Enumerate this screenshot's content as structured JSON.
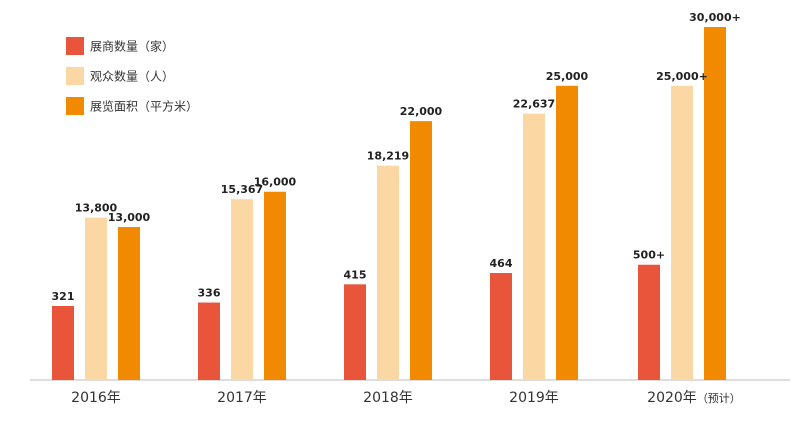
{
  "chart_data": {
    "type": "bar",
    "title": "",
    "xlabel": "",
    "ylabel": "",
    "legend_position": "top-left",
    "grid": false,
    "categories": [
      {
        "label": "2016年",
        "note": ""
      },
      {
        "label": "2017年",
        "note": ""
      },
      {
        "label": "2018年",
        "note": ""
      },
      {
        "label": "2019年",
        "note": ""
      },
      {
        "label": "2020年",
        "note": "（预计）"
      }
    ],
    "series": [
      {
        "name": "展商数量（家）",
        "color": "#e9553a",
        "values": [
          321,
          336,
          415,
          464,
          500
        ],
        "labels": [
          "321",
          "336",
          "415",
          "464",
          "500+"
        ]
      },
      {
        "name": "观众数量（人）",
        "color": "#fbd7a4",
        "values": [
          13800,
          15367,
          18219,
          22637,
          25000
        ],
        "labels": [
          "13,800",
          "15,367",
          "18,219",
          "22,637",
          "25,000+"
        ]
      },
      {
        "name": "展览面积（平方米）",
        "color": "#f18a00",
        "values": [
          13000,
          16000,
          22000,
          25000,
          30000
        ],
        "labels": [
          "13,000",
          "16,000",
          "22,000",
          "25,000",
          "30,000+"
        ]
      }
    ]
  }
}
